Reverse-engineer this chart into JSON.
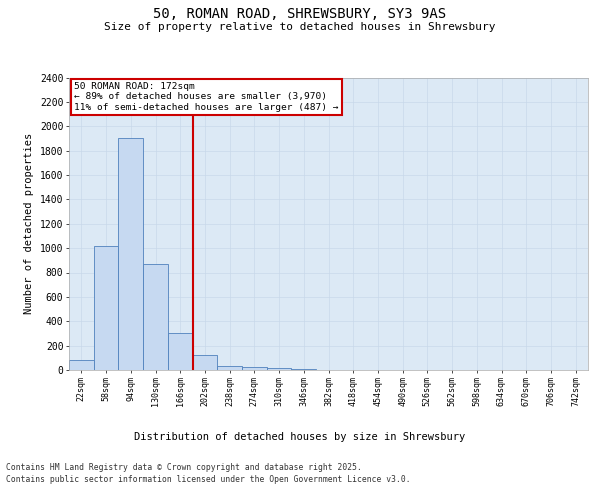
{
  "title_line1": "50, ROMAN ROAD, SHREWSBURY, SY3 9AS",
  "title_line2": "Size of property relative to detached houses in Shrewsbury",
  "xlabel": "Distribution of detached houses by size in Shrewsbury",
  "ylabel": "Number of detached properties",
  "annotation_line1": "50 ROMAN ROAD: 172sqm",
  "annotation_line2": "← 89% of detached houses are smaller (3,970)",
  "annotation_line3": "11% of semi-detached houses are larger (487) →",
  "categories": [
    "22sqm",
    "58sqm",
    "94sqm",
    "130sqm",
    "166sqm",
    "202sqm",
    "238sqm",
    "274sqm",
    "310sqm",
    "346sqm",
    "382sqm",
    "418sqm",
    "454sqm",
    "490sqm",
    "526sqm",
    "562sqm",
    "598sqm",
    "634sqm",
    "670sqm",
    "706sqm",
    "742sqm"
  ],
  "values": [
    80,
    1020,
    1900,
    870,
    300,
    125,
    35,
    25,
    15,
    5,
    3,
    2,
    1,
    1,
    0,
    0,
    0,
    0,
    0,
    0,
    0
  ],
  "bar_color": "#c6d9f1",
  "bar_edge_color": "#4f81bd",
  "vline_color": "#cc0000",
  "annotation_box_color": "#cc0000",
  "background_color": "#ffffff",
  "grid_color": "#c8d8ea",
  "axes_bg_color": "#dce9f5",
  "ylim": [
    0,
    2400
  ],
  "yticks": [
    0,
    200,
    400,
    600,
    800,
    1000,
    1200,
    1400,
    1600,
    1800,
    2000,
    2200,
    2400
  ],
  "footer_line1": "Contains HM Land Registry data © Crown copyright and database right 2025.",
  "footer_line2": "Contains public sector information licensed under the Open Government Licence v3.0."
}
